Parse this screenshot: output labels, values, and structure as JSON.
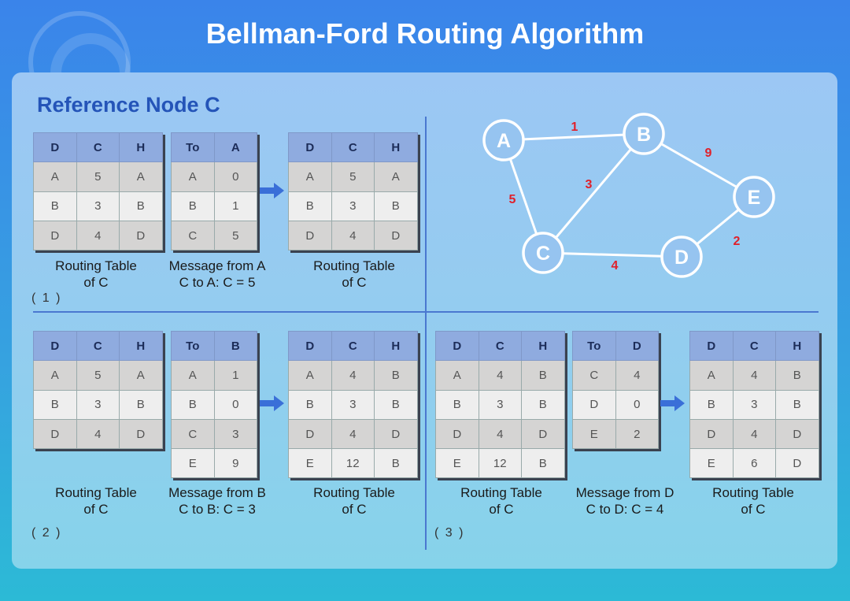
{
  "title": "Bellman-Ford Routing Algorithm",
  "reference": "Reference Node C",
  "accent": "#2454b8",
  "edge_label_color": "#e0202a",
  "graph": {
    "nodes": [
      "A",
      "B",
      "C",
      "D",
      "E"
    ],
    "edges": [
      {
        "from": "A",
        "to": "B",
        "weight": "1"
      },
      {
        "from": "B",
        "to": "E",
        "weight": "9"
      },
      {
        "from": "B",
        "to": "C",
        "weight": "3"
      },
      {
        "from": "A",
        "to": "C",
        "weight": "5"
      },
      {
        "from": "E",
        "to": "D",
        "weight": "2"
      },
      {
        "from": "C",
        "to": "D",
        "weight": "4"
      }
    ]
  },
  "steps": [
    {
      "label": "( 1 )",
      "tables": [
        {
          "caption": [
            "Routing Table",
            "of C"
          ],
          "headers": [
            "D",
            "C",
            "H"
          ],
          "rows": [
            [
              "A",
              "5",
              "A"
            ],
            [
              "B",
              "3",
              "B"
            ],
            [
              "D",
              "4",
              "D"
            ]
          ]
        },
        {
          "caption": [
            "Message from A",
            "C to A: C = 5"
          ],
          "headers": [
            "To",
            "A"
          ],
          "rows": [
            [
              "A",
              "0"
            ],
            [
              "B",
              "1"
            ],
            [
              "C",
              "5"
            ]
          ]
        },
        {
          "caption": [
            "Routing Table",
            "of C"
          ],
          "headers": [
            "D",
            "C",
            "H"
          ],
          "rows": [
            [
              "A",
              "5",
              "A"
            ],
            [
              "B",
              "3",
              "B"
            ],
            [
              "D",
              "4",
              "D"
            ]
          ]
        }
      ]
    },
    {
      "label": "( 2 )",
      "tables": [
        {
          "caption": [
            "Routing Table",
            "of C"
          ],
          "headers": [
            "D",
            "C",
            "H"
          ],
          "rows": [
            [
              "A",
              "5",
              "A"
            ],
            [
              "B",
              "3",
              "B"
            ],
            [
              "D",
              "4",
              "D"
            ]
          ]
        },
        {
          "caption": [
            "Message from B",
            "C to B: C = 3"
          ],
          "headers": [
            "To",
            "B"
          ],
          "rows": [
            [
              "A",
              "1"
            ],
            [
              "B",
              "0"
            ],
            [
              "C",
              "3"
            ],
            [
              "E",
              "9"
            ]
          ]
        },
        {
          "caption": [
            "Routing Table",
            "of C"
          ],
          "headers": [
            "D",
            "C",
            "H"
          ],
          "rows": [
            [
              "A",
              "4",
              "B"
            ],
            [
              "B",
              "3",
              "B"
            ],
            [
              "D",
              "4",
              "D"
            ],
            [
              "E",
              "12",
              "B"
            ]
          ]
        }
      ]
    },
    {
      "label": "( 3 )",
      "tables": [
        {
          "caption": [
            "Routing Table",
            "of C"
          ],
          "headers": [
            "D",
            "C",
            "H"
          ],
          "rows": [
            [
              "A",
              "4",
              "B"
            ],
            [
              "B",
              "3",
              "B"
            ],
            [
              "D",
              "4",
              "D"
            ],
            [
              "E",
              "12",
              "B"
            ]
          ]
        },
        {
          "caption": [
            "Message from D",
            "C to D: C = 4"
          ],
          "headers": [
            "To",
            "D"
          ],
          "rows": [
            [
              "C",
              "4"
            ],
            [
              "D",
              "0"
            ],
            [
              "E",
              "2"
            ]
          ]
        },
        {
          "caption": [
            "Routing Table",
            "of C"
          ],
          "headers": [
            "D",
            "C",
            "H"
          ],
          "rows": [
            [
              "A",
              "4",
              "B"
            ],
            [
              "B",
              "3",
              "B"
            ],
            [
              "D",
              "4",
              "D"
            ],
            [
              "E",
              "6",
              "D"
            ]
          ]
        }
      ]
    }
  ]
}
